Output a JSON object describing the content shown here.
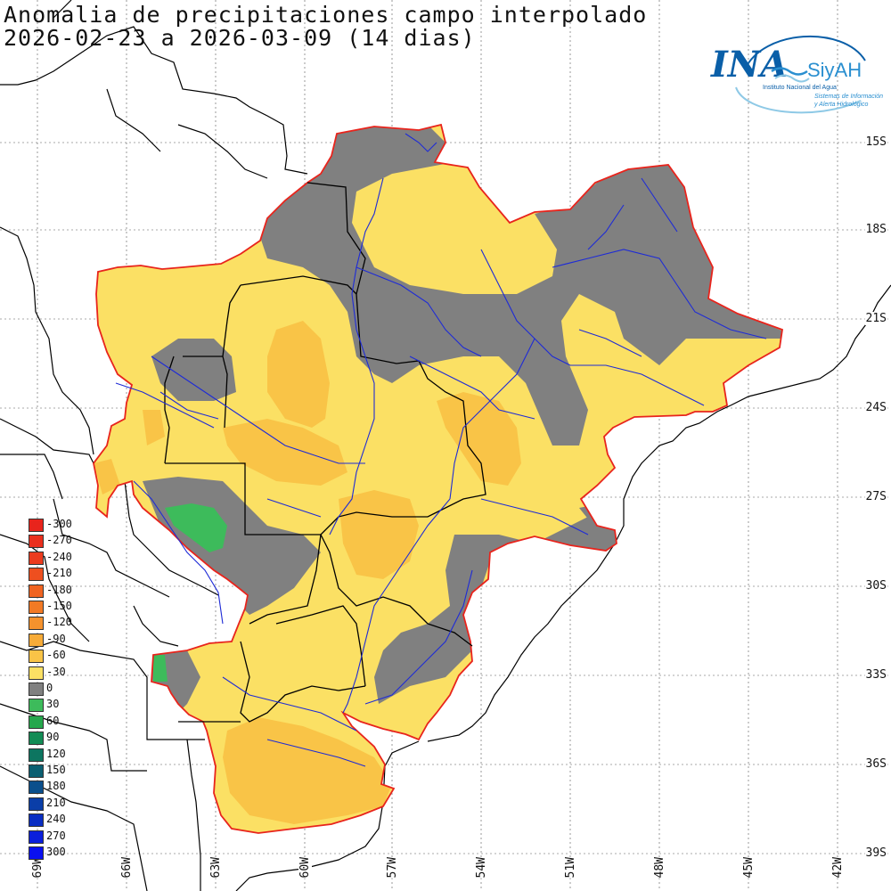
{
  "title": {
    "line1": "Anomalia de precipitaciones campo interpolado",
    "line2": "2026-02-23 a 2026-03-09 (14 dias)"
  },
  "logo": {
    "brand": "INA",
    "brand_secondary": "SiyAH",
    "subtitle1": "Instituto Nacional del Agua",
    "subtitle2": "Sistemas de Información",
    "subtitle3": "y Alerta Hidrológico"
  },
  "lat_labels": [
    "15S",
    "18S",
    "21S",
    "24S",
    "27S",
    "30S",
    "33S",
    "36S",
    "39S"
  ],
  "lon_labels": [
    "69W",
    "66W",
    "63W",
    "60W",
    "57W",
    "54W",
    "51W",
    "48W",
    "45W",
    "42W"
  ],
  "legend": [
    {
      "label": "-300",
      "color": "#e8241c"
    },
    {
      "label": "-270",
      "color": "#ea2f1d"
    },
    {
      "label": "-240",
      "color": "#ec3b1e"
    },
    {
      "label": "-210",
      "color": "#ee4f1f"
    },
    {
      "label": "-180",
      "color": "#f06421"
    },
    {
      "label": "-150",
      "color": "#f27a25"
    },
    {
      "label": "-120",
      "color": "#f5922d"
    },
    {
      "label": "-90",
      "color": "#f7ab38"
    },
    {
      "label": "-60",
      "color": "#f9c447"
    },
    {
      "label": "-30",
      "color": "#fbe064"
    },
    {
      "label": "0",
      "color": "#808080"
    },
    {
      "label": "30",
      "color": "#3dbb5b"
    },
    {
      "label": "60",
      "color": "#25a74c"
    },
    {
      "label": "90",
      "color": "#138c55"
    },
    {
      "label": "120",
      "color": "#0d7560"
    },
    {
      "label": "150",
      "color": "#0b5f71"
    },
    {
      "label": "180",
      "color": "#0a4f8c"
    },
    {
      "label": "210",
      "color": "#0a3ea8"
    },
    {
      "label": "240",
      "color": "#0a2ec3"
    },
    {
      "label": "270",
      "color": "#0a1fdc"
    },
    {
      "label": "300",
      "color": "#0a10f0"
    }
  ],
  "colors": {
    "dry_light": "#fbe064",
    "dry_moderate": "#f9c447",
    "normal": "#808080",
    "wet": "#3dbb5b",
    "basin_outline": "#e8241c",
    "rivers": "#1e2bd6",
    "borders": "#000000",
    "grid": "#555555"
  }
}
